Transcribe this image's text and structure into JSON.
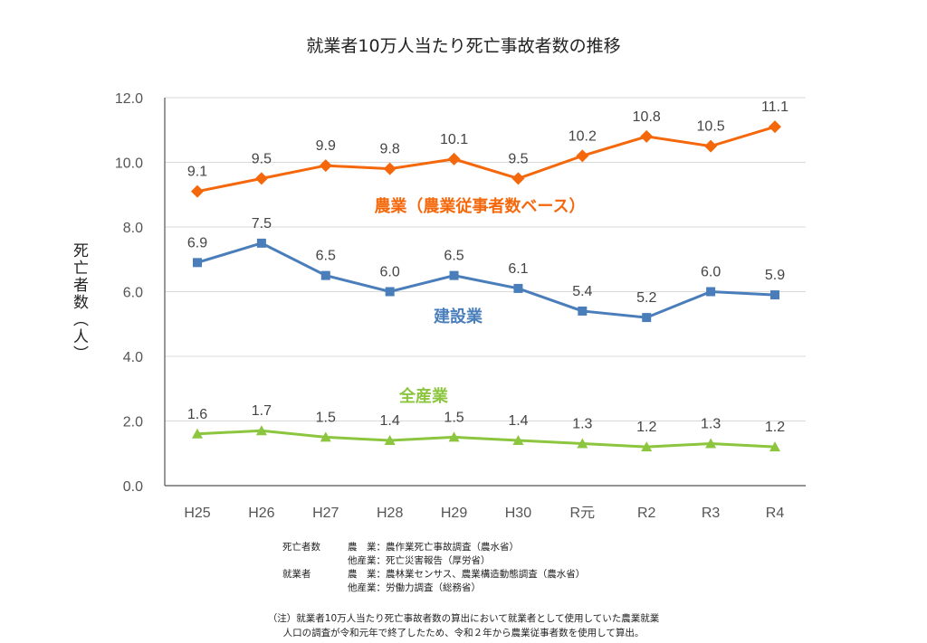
{
  "chart_data": {
    "type": "line",
    "title": "就業者10万人当たり死亡事故者数の推移",
    "ylabel": "死亡者数（人）",
    "xlabel": "",
    "categories": [
      "H25",
      "H26",
      "H27",
      "H28",
      "H29",
      "H30",
      "R元",
      "R2",
      "R3",
      "R4"
    ],
    "ylim": [
      0,
      12
    ],
    "yticks": [
      "0.0",
      "2.0",
      "4.0",
      "6.0",
      "8.0",
      "10.0",
      "12.0"
    ],
    "grid": true,
    "series": [
      {
        "name": "農業（農業従事者数ベース）",
        "color": "#f4680b",
        "marker": "diamond",
        "values": [
          9.1,
          9.5,
          9.9,
          9.8,
          10.1,
          9.5,
          10.2,
          10.8,
          10.5,
          11.1
        ]
      },
      {
        "name": "建設業",
        "color": "#4a7ebb",
        "marker": "square",
        "values": [
          6.9,
          7.5,
          6.5,
          6.0,
          6.5,
          6.1,
          5.4,
          5.2,
          6.0,
          5.9
        ]
      },
      {
        "name": "全産業",
        "color": "#8cc63f",
        "marker": "triangle",
        "values": [
          1.6,
          1.7,
          1.5,
          1.4,
          1.5,
          1.4,
          1.3,
          1.2,
          1.3,
          1.2
        ]
      }
    ]
  },
  "sources": {
    "r1c1": "死亡者数",
    "r1c2": "農　業：農作業死亡事故調査（農水省）",
    "r2c2": "他産業：死亡災害報告（厚労省）",
    "r3c1": "就業者",
    "r3c2": "農　業：農林業センサス、農業構造動態調査（農水省）",
    "r4c2": "他産業：労働力調査（総務省）"
  },
  "footnote": {
    "line1": "（注）就業者10万人当たり死亡事故者数の算出において就業者として使用していた農業就業",
    "line2": "人口の調査が令和元年で終了したため、令和２年から農業従事者数を使用して算出。"
  }
}
